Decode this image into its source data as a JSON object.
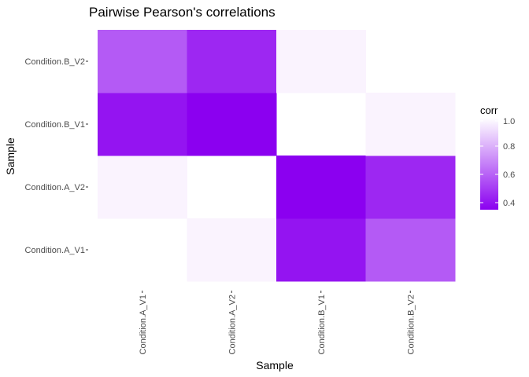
{
  "chart_data": {
    "type": "heatmap",
    "title": "Pairwise Pearson's correlations",
    "xlabel": "Sample",
    "ylabel": "Sample",
    "x_categories": [
      "Condition.A_V1",
      "Condition.A_V2",
      "Condition.B_V1",
      "Condition.B_V2"
    ],
    "y_categories": [
      "Condition.A_V1",
      "Condition.A_V2",
      "Condition.B_V1",
      "Condition.B_V2"
    ],
    "cells": [
      {
        "x": "Condition.A_V2",
        "y": "Condition.A_V1",
        "value": 0.97
      },
      {
        "x": "Condition.B_V1",
        "y": "Condition.A_V1",
        "value": 0.4
      },
      {
        "x": "Condition.B_V2",
        "y": "Condition.A_V1",
        "value": 0.58
      },
      {
        "x": "Condition.A_V1",
        "y": "Condition.A_V2",
        "value": 0.97
      },
      {
        "x": "Condition.B_V1",
        "y": "Condition.A_V2",
        "value": 0.35
      },
      {
        "x": "Condition.B_V2",
        "y": "Condition.A_V2",
        "value": 0.45
      },
      {
        "x": "Condition.A_V1",
        "y": "Condition.B_V1",
        "value": 0.4
      },
      {
        "x": "Condition.A_V2",
        "y": "Condition.B_V1",
        "value": 0.35
      },
      {
        "x": "Condition.B_V2",
        "y": "Condition.B_V1",
        "value": 0.97
      },
      {
        "x": "Condition.A_V1",
        "y": "Condition.B_V2",
        "value": 0.58
      },
      {
        "x": "Condition.A_V2",
        "y": "Condition.B_V2",
        "value": 0.45
      },
      {
        "x": "Condition.B_V1",
        "y": "Condition.B_V2",
        "value": 0.97
      }
    ],
    "color_scale": {
      "low_color": "#8b00f0",
      "high_color": "#ffffff",
      "domain": [
        0.35,
        1.0
      ]
    },
    "legend": {
      "title": "corr",
      "ticks": [
        "1.0",
        "0.8",
        "0.6",
        "0.4"
      ],
      "tick_values": [
        1.0,
        0.8,
        0.6,
        0.4
      ],
      "placement": "right"
    },
    "grid": false
  }
}
